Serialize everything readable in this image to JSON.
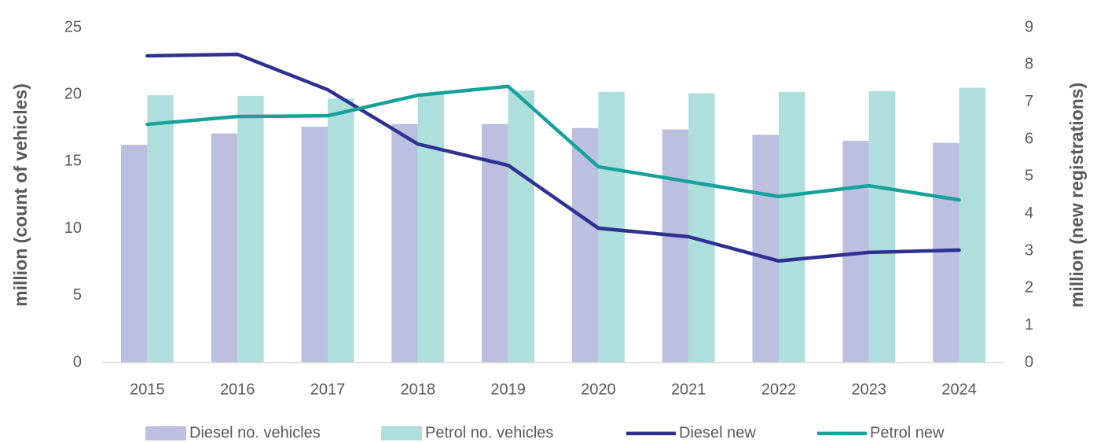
{
  "chart_data": {
    "type": "bar",
    "categories": [
      "2015",
      "2016",
      "2017",
      "2018",
      "2019",
      "2020",
      "2021",
      "2022",
      "2023",
      "2024"
    ],
    "ylabel": "million (count of vehicles)",
    "y2label": "million (new registrations)",
    "ylim": [
      0,
      25
    ],
    "yticks": [
      0,
      5,
      10,
      15,
      20,
      25
    ],
    "y2lim": [
      0,
      9
    ],
    "y2ticks": [
      0,
      1,
      2,
      3,
      4,
      5,
      6,
      7,
      8,
      9
    ],
    "grid": false,
    "legend": "bottom",
    "series": [
      {
        "name": "Diesel no. vehicles",
        "type": "bar",
        "color": "#bcbfdf",
        "values": [
          16.25,
          17.1,
          17.6,
          17.8,
          17.8,
          17.5,
          17.4,
          17.0,
          16.55,
          16.4
        ]
      },
      {
        "name": "Petrol no. vehicles",
        "type": "bar",
        "color": "#aedfdc",
        "values": [
          19.95,
          19.9,
          19.7,
          20.1,
          20.3,
          20.2,
          20.1,
          20.2,
          20.25,
          20.5
        ]
      },
      {
        "name": "Diesel new",
        "type": "line",
        "axis": "y2",
        "color": "#2e3192",
        "values": [
          8.24,
          8.28,
          7.33,
          5.87,
          5.3,
          3.61,
          3.38,
          2.73,
          2.96,
          3.02
        ]
      },
      {
        "name": "Petrol new",
        "type": "line",
        "axis": "y2",
        "color": "#16a19a",
        "values": [
          6.4,
          6.61,
          6.63,
          7.18,
          7.42,
          5.26,
          4.86,
          4.46,
          4.75,
          4.37
        ]
      }
    ]
  }
}
